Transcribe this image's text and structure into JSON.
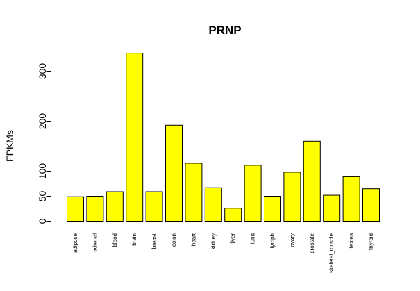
{
  "chart_data": {
    "type": "bar",
    "title": "PRNP",
    "xlabel": "",
    "ylabel": "FPKMs",
    "ylim": [
      0,
      335
    ],
    "yticks": [
      0,
      50,
      100,
      200,
      300
    ],
    "grid": false,
    "legend": "none",
    "bar_color": "#ffff00",
    "bar_border_color": "#000000",
    "categories": [
      "adipose",
      "adrenal",
      "blood",
      "brain",
      "breast",
      "colon",
      "heart",
      "kidney",
      "liver",
      "lung",
      "lymph",
      "ovary",
      "prostate",
      "skeletal_muscle",
      "testes",
      "thyroid"
    ],
    "values": [
      49,
      50,
      59,
      336,
      59,
      192,
      116,
      67,
      26,
      112,
      50,
      98,
      160,
      52,
      89,
      65
    ]
  }
}
